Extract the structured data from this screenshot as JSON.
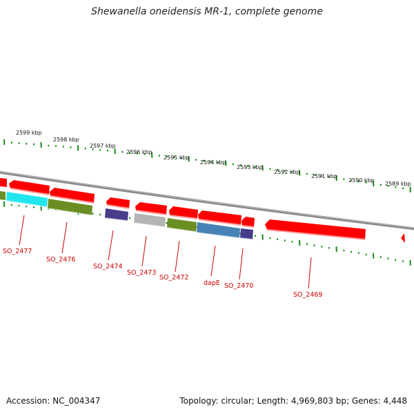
{
  "title": "Shewanella oneidensis MR-1, complete genome",
  "footer": {
    "accession": "Accession: NC_004347",
    "topology": "Topology: circular; Length: 4,969,803 bp; Genes: 4,448"
  },
  "colors": {
    "backbone": "#8a8a8a",
    "tick": "#1a8a1a",
    "label": "#cc0000",
    "gene_red": "#ff0000",
    "gene_cyan": "#22e6ee",
    "gene_olive": "#6b8e23",
    "gene_navy": "#483d8b",
    "gene_gray": "#b4b4b4",
    "gene_steel": "#4682b4"
  },
  "kbp_labels": [
    "2599 kbp",
    "2598 kbp",
    "2597 kbp",
    "2596 kbp",
    "2595 kbp",
    "2594 kbp",
    "2593 kbp",
    "2592 kbp",
    "2591 kbp",
    "2590 kbp",
    "2589 kbp"
  ],
  "gene_labels": [
    "SO_2477",
    "SO_2476",
    "SO_2474",
    "SO_2473",
    "SO_2472",
    "dapE",
    "SO_2470",
    "SO_2469"
  ]
}
